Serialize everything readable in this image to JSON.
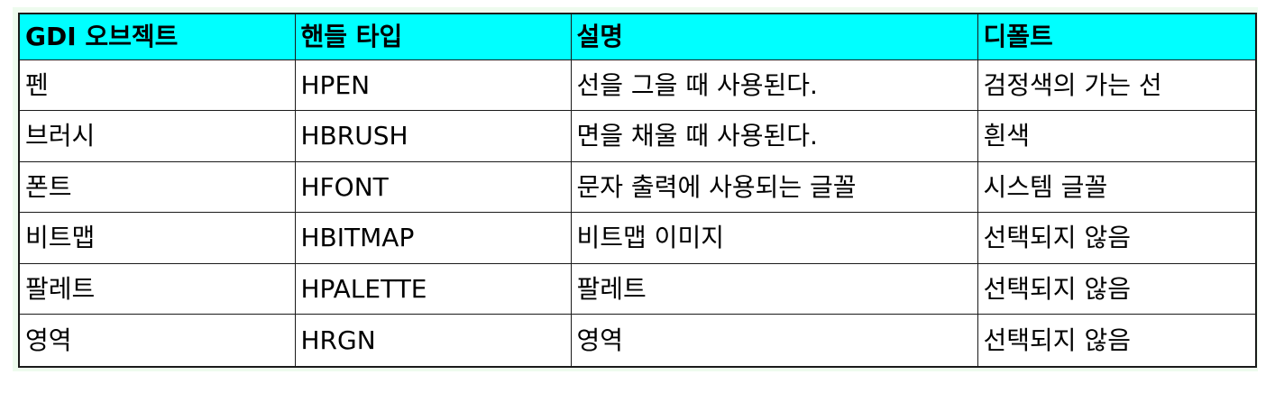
{
  "table": {
    "headers": [
      "GDI 오브젝트",
      "핸들 타입",
      "설명",
      "디폴트"
    ],
    "header_bg": "#00ffff",
    "rows": [
      [
        "펜",
        "HPEN",
        "선을 그을 때 사용된다.",
        "검정색의 가는 선"
      ],
      [
        "브러시",
        "HBRUSH",
        "면을 채울 때 사용된다.",
        "흰색"
      ],
      [
        "폰트",
        "HFONT",
        "문자 출력에 사용되는 글꼴",
        "시스템 글꼴"
      ],
      [
        "비트맵",
        "HBITMAP",
        "비트맵 이미지",
        "선택되지 않음"
      ],
      [
        "팔레트",
        "HPALETTE",
        "팔레트",
        "선택되지 않음"
      ],
      [
        "영역",
        "HRGN",
        "영역",
        "선택되지 않음"
      ]
    ]
  }
}
